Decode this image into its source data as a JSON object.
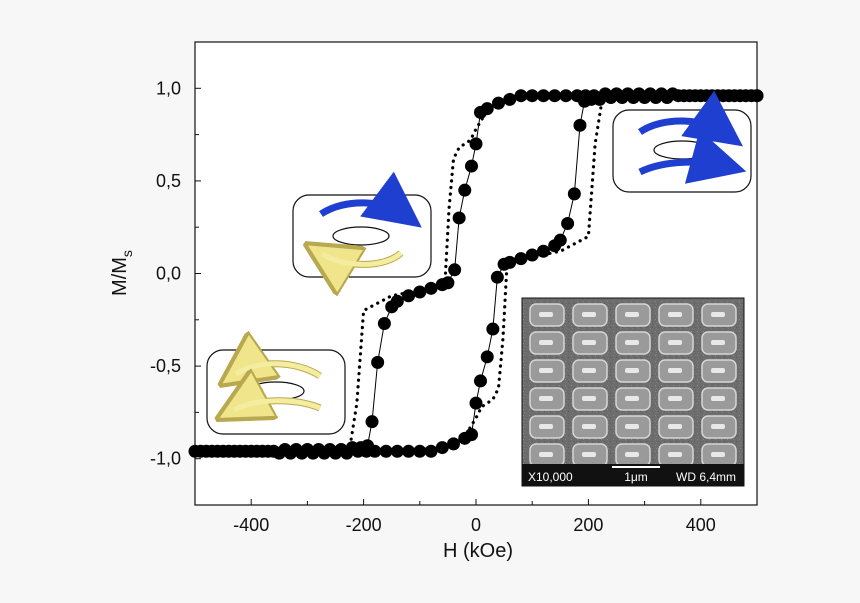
{
  "chart_data": {
    "type": "scatter",
    "title": "",
    "xlabel": "H (kOe)",
    "ylabel": "M/M",
    "ylabel_subscript": "s",
    "xlim": [
      -500,
      500
    ],
    "ylim": [
      -1.25,
      1.25
    ],
    "x_ticks": [
      -400,
      -200,
      0,
      200,
      400
    ],
    "x_tick_labels": [
      "-400",
      "-200",
      "0",
      "200",
      "400"
    ],
    "y_ticks": [
      1.0,
      0.5,
      0.0,
      -0.5,
      -1.0
    ],
    "y_tick_labels": [
      "1,0",
      "0,5",
      "0,0",
      "-0,5",
      "-1,0"
    ],
    "grid": false,
    "series": [
      {
        "style": "markers",
        "x": [
          -500,
          -480,
          -460,
          -440,
          -420,
          -400,
          -380,
          -360,
          -340,
          -320,
          -300,
          -280,
          -260,
          -240,
          -220,
          -205,
          -193,
          -185,
          -175,
          -163,
          -150,
          -140,
          -120,
          -100,
          -80,
          -60,
          -50,
          -38,
          -30,
          -20,
          -8,
          0,
          8,
          20,
          40,
          60,
          80,
          100,
          120,
          140,
          160,
          180,
          195,
          210,
          230,
          250,
          270,
          290,
          310,
          330,
          350,
          370,
          390,
          410,
          430,
          450,
          470,
          490,
          500
        ],
        "y": [
          -0.96,
          -0.96,
          -0.96,
          -0.96,
          -0.96,
          -0.96,
          -0.96,
          -0.96,
          -0.95,
          -0.95,
          -0.95,
          -0.95,
          -0.95,
          -0.95,
          -0.94,
          -0.94,
          -0.93,
          -0.8,
          -0.48,
          -0.27,
          -0.18,
          -0.15,
          -0.12,
          -0.1,
          -0.08,
          -0.06,
          -0.05,
          0.02,
          0.3,
          0.45,
          0.58,
          0.7,
          0.87,
          0.89,
          0.92,
          0.94,
          0.96,
          0.96,
          0.96,
          0.96,
          0.96,
          0.96,
          0.96,
          0.96,
          0.97,
          0.97,
          0.97,
          0.97,
          0.97,
          0.97,
          0.97,
          0.96,
          0.96,
          0.96,
          0.96,
          0.96,
          0.96,
          0.96,
          0.96
        ]
      },
      {
        "style": "markers",
        "x": [
          500,
          480,
          460,
          440,
          420,
          400,
          380,
          360,
          340,
          320,
          300,
          280,
          260,
          240,
          220,
          205,
          193,
          185,
          175,
          163,
          150,
          140,
          120,
          100,
          80,
          60,
          50,
          38,
          30,
          20,
          8,
          0,
          -8,
          -20,
          -40,
          -60,
          -80,
          -100,
          -120,
          -140,
          -160,
          -180,
          -195,
          -210,
          -230,
          -250,
          -270,
          -290,
          -310,
          -330,
          -350,
          -370,
          -390,
          -410,
          -430,
          -450,
          -470,
          -490
        ],
        "y": [
          0.96,
          0.96,
          0.96,
          0.96,
          0.96,
          0.96,
          0.96,
          0.96,
          0.95,
          0.95,
          0.95,
          0.95,
          0.95,
          0.95,
          0.94,
          0.94,
          0.93,
          0.8,
          0.43,
          0.27,
          0.18,
          0.15,
          0.12,
          0.1,
          0.08,
          0.06,
          0.05,
          -0.02,
          -0.3,
          -0.45,
          -0.58,
          -0.7,
          -0.87,
          -0.89,
          -0.92,
          -0.94,
          -0.96,
          -0.96,
          -0.96,
          -0.96,
          -0.96,
          -0.96,
          -0.96,
          -0.96,
          -0.97,
          -0.97,
          -0.97,
          -0.97,
          -0.97,
          -0.97,
          -0.97,
          -0.96,
          -0.96,
          -0.96,
          -0.96,
          -0.96,
          -0.96,
          -0.96
        ]
      },
      {
        "style": "dotted-line",
        "x": [
          -500,
          -350,
          -250,
          -225,
          -212,
          -200,
          -150,
          -100,
          -55,
          -48,
          -40,
          -30,
          -20,
          -10,
          0,
          20,
          50,
          100,
          300,
          500
        ],
        "y": [
          -0.96,
          -0.96,
          -0.955,
          -0.95,
          -0.7,
          -0.2,
          -0.12,
          -0.09,
          -0.04,
          0.35,
          0.62,
          0.68,
          0.7,
          0.72,
          0.78,
          0.88,
          0.93,
          0.95,
          0.97,
          0.97
        ]
      },
      {
        "style": "dotted-line",
        "x": [
          500,
          350,
          250,
          225,
          212,
          200,
          150,
          100,
          55,
          48,
          40,
          30,
          20,
          10,
          0,
          -20,
          -50,
          -100,
          -300,
          -500
        ],
        "y": [
          0.96,
          0.96,
          0.955,
          0.95,
          0.7,
          0.2,
          0.12,
          0.09,
          0.04,
          -0.35,
          -0.62,
          -0.68,
          -0.7,
          -0.72,
          -0.78,
          -0.88,
          -0.93,
          -0.95,
          -0.97,
          -0.97
        ]
      }
    ]
  },
  "inset": {
    "magnification": "X10,000",
    "scale": "1μm",
    "working_distance": "WD 6,4mm"
  },
  "colors": {
    "background": "#f7f7f7",
    "plot_background": "#ffffff",
    "data": "#000000",
    "arrow_blue": "#1f3fd0",
    "arrow_yellow": "#f4eda0"
  },
  "icons": [
    "domain-state-icon-negative",
    "domain-state-icon-middle",
    "domain-state-icon-positive"
  ]
}
